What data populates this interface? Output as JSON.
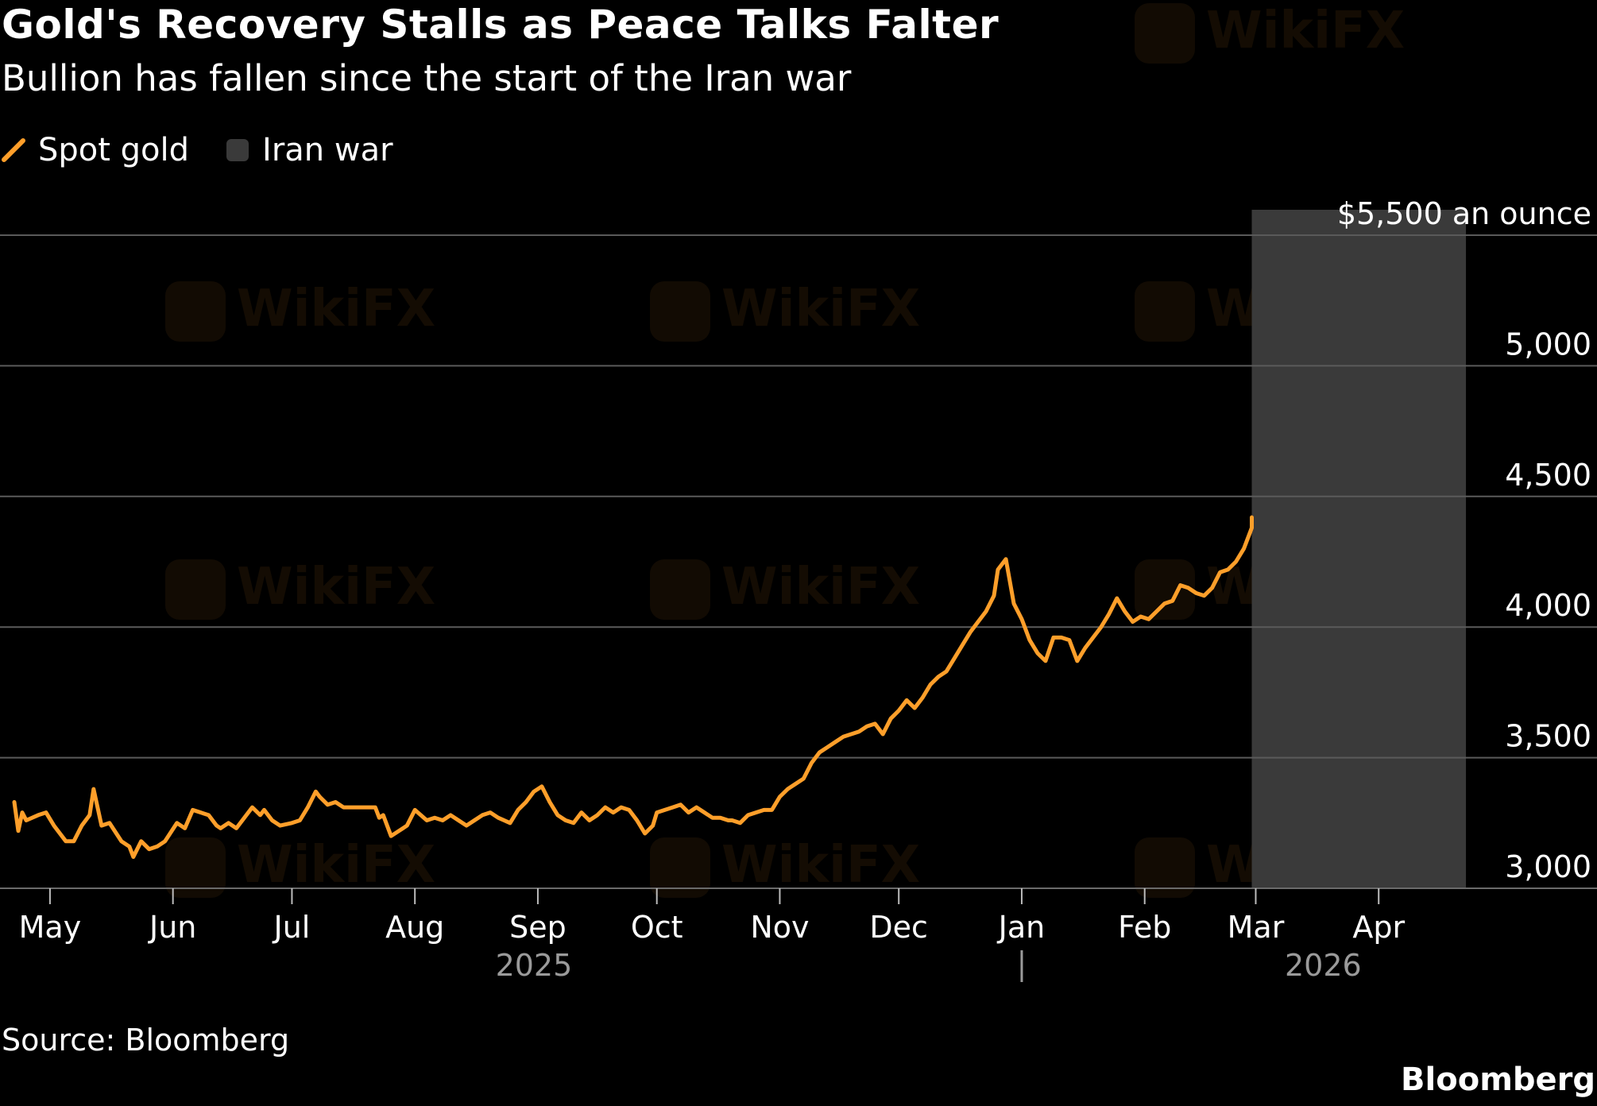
{
  "header": {
    "title": "Gold's Recovery Stalls as Peace Talks Falter",
    "subtitle": "Bullion has fallen since the start of the Iran war"
  },
  "legend": {
    "series_label": "Spot gold",
    "shade_label": "Iran war"
  },
  "footer": {
    "source": "Source: Bloomberg",
    "brand": "Bloomberg"
  },
  "watermark": "WikiFX",
  "colors": {
    "background": "#000000",
    "series": "#ff9f2a",
    "shade": "#3a3a3a",
    "grid": "#5a5a5a",
    "year_label": "#9a9a9a"
  },
  "chart_data": {
    "type": "line",
    "title": "Gold's Recovery Stalls as Peace Talks Falter",
    "subtitle": "Bullion has fallen since the start of the Iran war",
    "ylabel": "",
    "xlabel": "",
    "ylim": [
      3000,
      5500
    ],
    "x_range": [
      "2025-04-22",
      "2026-04-30"
    ],
    "y_ticks": [
      {
        "value": 3000,
        "label": "3,000"
      },
      {
        "value": 3500,
        "label": "3,500"
      },
      {
        "value": 4000,
        "label": "4,000"
      },
      {
        "value": 4500,
        "label": "4,500"
      },
      {
        "value": 5000,
        "label": "5,000"
      },
      {
        "value": 5500,
        "label": "$5,500 an ounce"
      }
    ],
    "x_ticks": [
      {
        "date": "2025-05-01",
        "label": "May"
      },
      {
        "date": "2025-06-01",
        "label": "Jun"
      },
      {
        "date": "2025-07-01",
        "label": "Jul"
      },
      {
        "date": "2025-08-01",
        "label": "Aug"
      },
      {
        "date": "2025-09-01",
        "label": "Sep"
      },
      {
        "date": "2025-10-01",
        "label": "Oct"
      },
      {
        "date": "2025-11-01",
        "label": "Nov"
      },
      {
        "date": "2025-12-01",
        "label": "Dec"
      },
      {
        "date": "2026-01-01",
        "label": "Jan"
      },
      {
        "date": "2026-02-01",
        "label": "Feb"
      },
      {
        "date": "2026-03-01",
        "label": "Mar"
      },
      {
        "date": "2026-04-01",
        "label": "Apr"
      }
    ],
    "year_labels": [
      {
        "label": "2025",
        "date": "2025-08-31"
      },
      {
        "label": "2026",
        "date": "2026-03-18"
      }
    ],
    "year_divider": "2026-01-01",
    "grid": true,
    "legend_position": "top-left",
    "shaded_regions": [
      {
        "name": "Iran war",
        "start": "2026-02-28",
        "end": "2026-04-23"
      }
    ],
    "series": [
      {
        "name": "Spot gold",
        "points": [
          [
            "2025-04-22",
            3330
          ],
          [
            "2025-04-23",
            3220
          ],
          [
            "2025-04-24",
            3290
          ],
          [
            "2025-04-25",
            3260
          ],
          [
            "2025-04-28",
            3280
          ],
          [
            "2025-04-30",
            3290
          ],
          [
            "2025-05-02",
            3240
          ],
          [
            "2025-05-05",
            3180
          ],
          [
            "2025-05-07",
            3180
          ],
          [
            "2025-05-09",
            3240
          ],
          [
            "2025-05-11",
            3280
          ],
          [
            "2025-05-12",
            3380
          ],
          [
            "2025-05-14",
            3240
          ],
          [
            "2025-05-16",
            3250
          ],
          [
            "2025-05-19",
            3180
          ],
          [
            "2025-05-21",
            3160
          ],
          [
            "2025-05-22",
            3120
          ],
          [
            "2025-05-24",
            3180
          ],
          [
            "2025-05-26",
            3150
          ],
          [
            "2025-05-28",
            3160
          ],
          [
            "2025-05-30",
            3180
          ],
          [
            "2025-06-02",
            3250
          ],
          [
            "2025-06-04",
            3230
          ],
          [
            "2025-06-06",
            3300
          ],
          [
            "2025-06-10",
            3280
          ],
          [
            "2025-06-12",
            3240
          ],
          [
            "2025-06-13",
            3230
          ],
          [
            "2025-06-15",
            3250
          ],
          [
            "2025-06-17",
            3230
          ],
          [
            "2025-06-19",
            3270
          ],
          [
            "2025-06-21",
            3310
          ],
          [
            "2025-06-23",
            3280
          ],
          [
            "2025-06-24",
            3300
          ],
          [
            "2025-06-26",
            3260
          ],
          [
            "2025-06-28",
            3240
          ],
          [
            "2025-07-01",
            3250
          ],
          [
            "2025-07-03",
            3260
          ],
          [
            "2025-07-05",
            3310
          ],
          [
            "2025-07-07",
            3370
          ],
          [
            "2025-07-08",
            3350
          ],
          [
            "2025-07-10",
            3320
          ],
          [
            "2025-07-12",
            3330
          ],
          [
            "2025-07-14",
            3310
          ],
          [
            "2025-07-16",
            3310
          ],
          [
            "2025-07-18",
            3310
          ],
          [
            "2025-07-20",
            3310
          ],
          [
            "2025-07-22",
            3310
          ],
          [
            "2025-07-23",
            3270
          ],
          [
            "2025-07-24",
            3280
          ],
          [
            "2025-07-26",
            3200
          ],
          [
            "2025-07-28",
            3220
          ],
          [
            "2025-07-30",
            3240
          ],
          [
            "2025-08-01",
            3300
          ],
          [
            "2025-08-04",
            3260
          ],
          [
            "2025-08-06",
            3270
          ],
          [
            "2025-08-08",
            3260
          ],
          [
            "2025-08-10",
            3280
          ],
          [
            "2025-08-12",
            3260
          ],
          [
            "2025-08-14",
            3240
          ],
          [
            "2025-08-16",
            3260
          ],
          [
            "2025-08-18",
            3280
          ],
          [
            "2025-08-20",
            3290
          ],
          [
            "2025-08-22",
            3270
          ],
          [
            "2025-08-25",
            3250
          ],
          [
            "2025-08-27",
            3300
          ],
          [
            "2025-08-29",
            3330
          ],
          [
            "2025-08-31",
            3370
          ],
          [
            "2025-09-02",
            3390
          ],
          [
            "2025-09-04",
            3330
          ],
          [
            "2025-09-06",
            3280
          ],
          [
            "2025-09-08",
            3260
          ],
          [
            "2025-09-10",
            3250
          ],
          [
            "2025-09-12",
            3290
          ],
          [
            "2025-09-14",
            3260
          ],
          [
            "2025-09-16",
            3280
          ],
          [
            "2025-09-18",
            3310
          ],
          [
            "2025-09-20",
            3290
          ],
          [
            "2025-09-22",
            3310
          ],
          [
            "2025-09-24",
            3300
          ],
          [
            "2025-09-26",
            3260
          ],
          [
            "2025-09-28",
            3210
          ],
          [
            "2025-09-30",
            3240
          ],
          [
            "2025-10-01",
            3290
          ],
          [
            "2025-10-03",
            3300
          ],
          [
            "2025-10-05",
            3310
          ],
          [
            "2025-10-07",
            3320
          ],
          [
            "2025-10-09",
            3290
          ],
          [
            "2025-10-11",
            3310
          ],
          [
            "2025-10-13",
            3290
          ],
          [
            "2025-10-15",
            3270
          ],
          [
            "2025-10-17",
            3270
          ],
          [
            "2025-10-19",
            3260
          ],
          [
            "2025-10-20",
            3260
          ],
          [
            "2025-10-22",
            3250
          ],
          [
            "2025-10-24",
            3280
          ],
          [
            "2025-10-26",
            3290
          ],
          [
            "2025-10-28",
            3300
          ],
          [
            "2025-10-30",
            3300
          ],
          [
            "2025-11-01",
            3350
          ],
          [
            "2025-11-03",
            3380
          ],
          [
            "2025-11-05",
            3400
          ],
          [
            "2025-11-07",
            3420
          ],
          [
            "2025-11-09",
            3480
          ],
          [
            "2025-11-11",
            3520
          ],
          [
            "2025-11-13",
            3540
          ],
          [
            "2025-11-15",
            3560
          ],
          [
            "2025-11-17",
            3580
          ],
          [
            "2025-11-19",
            3590
          ],
          [
            "2025-11-21",
            3600
          ],
          [
            "2025-11-23",
            3620
          ],
          [
            "2025-11-25",
            3630
          ],
          [
            "2025-11-27",
            3590
          ],
          [
            "2025-11-29",
            3650
          ],
          [
            "2025-12-01",
            3680
          ],
          [
            "2025-12-03",
            3720
          ],
          [
            "2025-12-05",
            3690
          ],
          [
            "2025-12-07",
            3730
          ],
          [
            "2025-12-09",
            3780
          ],
          [
            "2025-12-11",
            3810
          ],
          [
            "2025-12-13",
            3830
          ],
          [
            "2025-12-15",
            3880
          ],
          [
            "2025-12-17",
            3930
          ],
          [
            "2025-12-19",
            3980
          ],
          [
            "2025-12-21",
            4020
          ],
          [
            "2025-12-23",
            4060
          ],
          [
            "2025-12-25",
            4120
          ],
          [
            "2025-12-26",
            4220
          ],
          [
            "2025-12-28",
            4260
          ],
          [
            "2025-12-30",
            4090
          ],
          [
            "2026-01-01",
            4030
          ],
          [
            "2026-01-03",
            3950
          ],
          [
            "2026-01-05",
            3900
          ],
          [
            "2026-01-07",
            3870
          ],
          [
            "2026-01-09",
            3960
          ],
          [
            "2026-01-11",
            3960
          ],
          [
            "2026-01-13",
            3950
          ],
          [
            "2026-01-15",
            3870
          ],
          [
            "2026-01-17",
            3920
          ],
          [
            "2026-01-19",
            3960
          ],
          [
            "2026-01-21",
            4000
          ],
          [
            "2026-01-23",
            4050
          ],
          [
            "2026-01-25",
            4110
          ],
          [
            "2026-01-27",
            4060
          ],
          [
            "2026-01-29",
            4020
          ],
          [
            "2026-01-31",
            4040
          ],
          [
            "2026-02-02",
            4030
          ],
          [
            "2026-02-04",
            4060
          ],
          [
            "2026-02-06",
            4090
          ],
          [
            "2026-02-08",
            4100
          ],
          [
            "2026-02-10",
            4160
          ],
          [
            "2026-02-12",
            4150
          ],
          [
            "2026-02-14",
            4130
          ],
          [
            "2026-02-16",
            4120
          ],
          [
            "2026-02-18",
            4150
          ],
          [
            "2026-02-20",
            4210
          ],
          [
            "2026-02-22",
            4220
          ],
          [
            "2026-02-24",
            4250
          ],
          [
            "2026-02-26",
            4300
          ],
          [
            "2026-02-28",
            4380
          ],
          [
            "2026-02-28",
            4420
          ]
        ]
      }
    ]
  }
}
